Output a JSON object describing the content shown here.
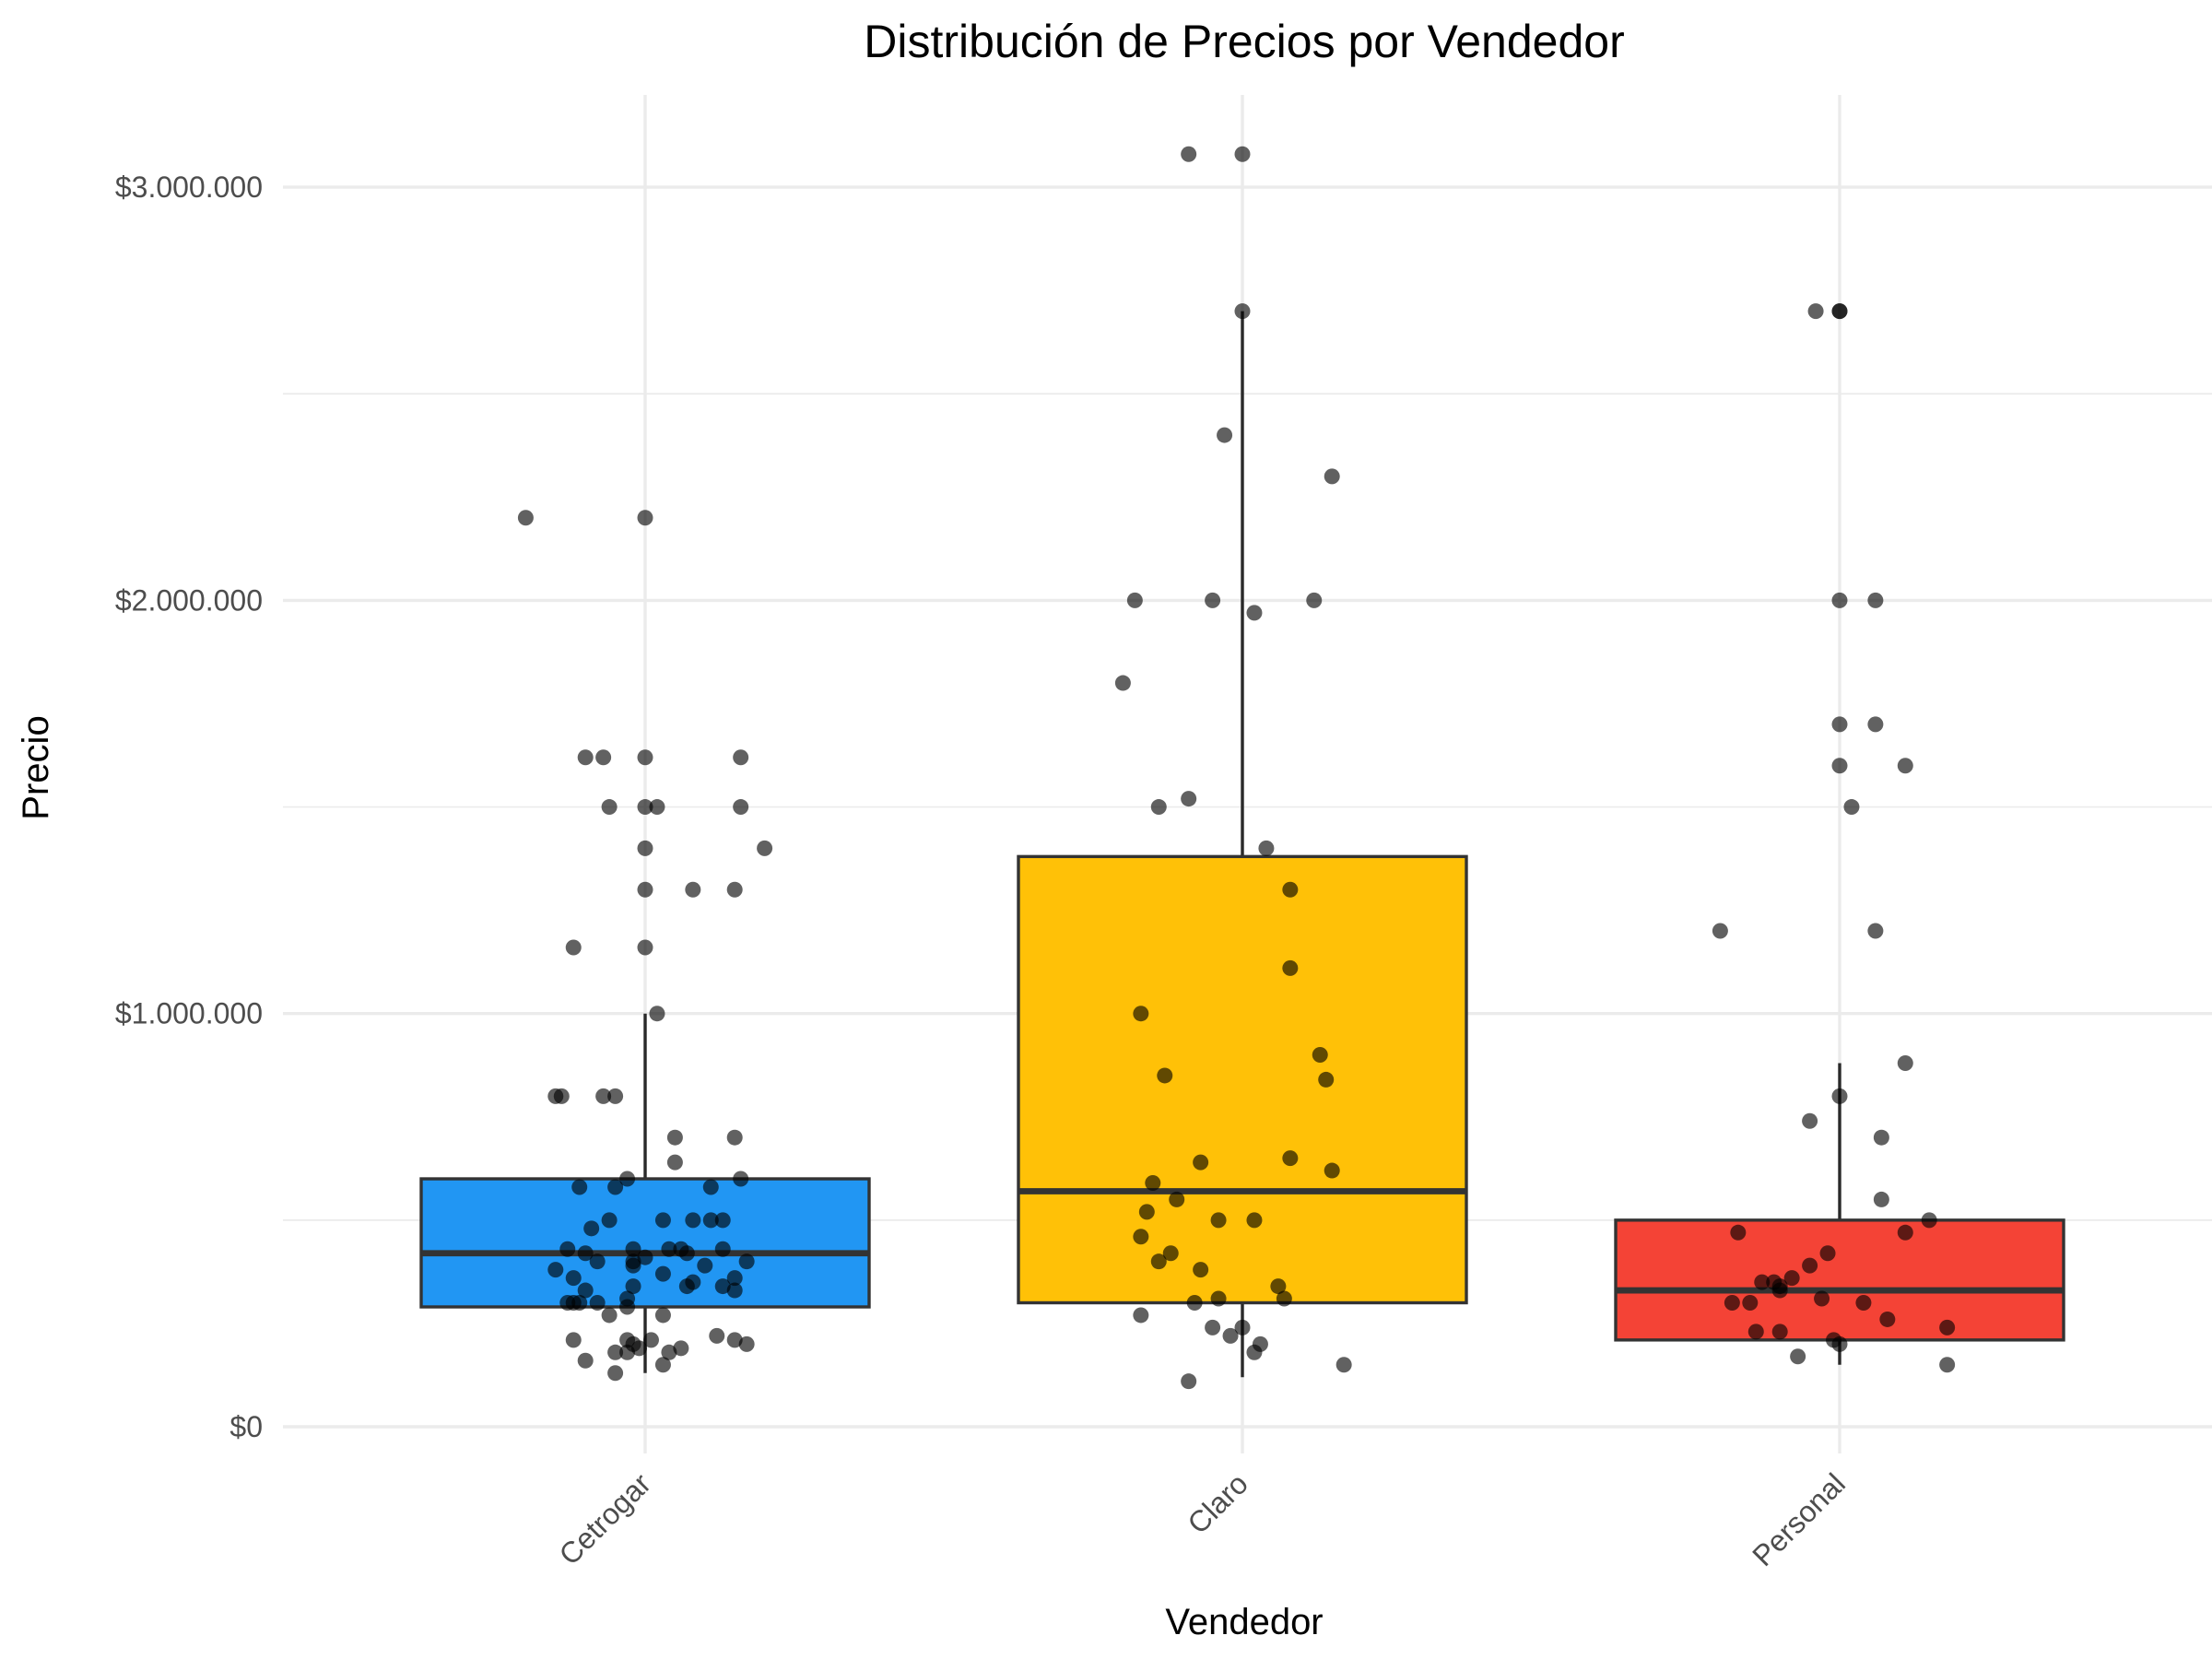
{
  "chart_data": {
    "type": "boxplot",
    "title": "Distribución de Precios por Vendedor",
    "xlabel": "Vendedor",
    "ylabel": "Precio",
    "ylim": [
      -150000,
      3250000
    ],
    "y_ticks": [
      0,
      1000000,
      2000000,
      3000000
    ],
    "y_tick_labels": [
      "$0",
      "$1.000.000",
      "$2.000.000",
      "$3.000.000"
    ],
    "x_tick_rotation": 45,
    "grid": true,
    "legend": "none",
    "categories": [
      "Cetrogar",
      "Claro",
      "Personal"
    ],
    "boxes": [
      {
        "category": "Cetrogar",
        "color": "#2196F3",
        "lower_whisker": 130000,
        "q1": 290000,
        "median": 420000,
        "q3": 600000,
        "upper_whisker": 1000000
      },
      {
        "category": "Claro",
        "color": "#FFC107",
        "lower_whisker": 120000,
        "q1": 300000,
        "median": 570000,
        "q3": 1380000,
        "upper_whisker": 2700000
      },
      {
        "category": "Personal",
        "color": "#F44336",
        "lower_whisker": 150000,
        "q1": 210000,
        "median": 330000,
        "q3": 500000,
        "upper_whisker": 880000
      }
    ],
    "points": [
      {
        "category": "Cetrogar",
        "x_offset": [
          -0.2,
          0,
          -0.07,
          -0.1,
          0,
          0.16,
          -0.06,
          0,
          0.02,
          0.16,
          0,
          0.2,
          0,
          0.08,
          0.15,
          -0.12,
          0,
          0.02,
          -0.14,
          -0.15,
          -0.07,
          0.15,
          0.05,
          -0.05,
          -0.03,
          0.11,
          0.16,
          0.05,
          -0.11,
          -0.05,
          0.03,
          0.08,
          0.13,
          -0.09,
          -0.06,
          0.11,
          0.04,
          -0.02,
          0.06,
          -0.13,
          -0.1,
          0.13,
          0.07,
          0,
          0.17,
          -0.02,
          -0.08,
          -0.02,
          0.1,
          -0.15,
          0.03,
          0.15,
          -0.12,
          0.08,
          0.07,
          0.13,
          -0.02,
          0.15,
          -0.1,
          -0.03,
          -0.11,
          -0.12,
          -0.08,
          -0.13,
          -0.03,
          0.03,
          -0.06,
          -0.12,
          0.01,
          0.12,
          0.17,
          -0.03,
          -0.02,
          0.06,
          -0.01,
          -0.03,
          0.04,
          -0.05,
          0.15,
          -0.1,
          0.03,
          -0.05
        ],
        "y": [
          2200000,
          2200000,
          1620000,
          1620000,
          1620000,
          1620000,
          1500000,
          1500000,
          1500000,
          1500000,
          1400000,
          1400000,
          1300000,
          1300000,
          1300000,
          1160000,
          1160000,
          1000000,
          800000,
          800000,
          800000,
          700000,
          700000,
          800000,
          600000,
          580000,
          600000,
          640000,
          580000,
          580000,
          500000,
          500000,
          500000,
          480000,
          500000,
          500000,
          430000,
          430000,
          430000,
          430000,
          420000,
          430000,
          420000,
          410000,
          400000,
          400000,
          400000,
          390000,
          390000,
          380000,
          370000,
          360000,
          360000,
          350000,
          340000,
          340000,
          340000,
          330000,
          330000,
          310000,
          300000,
          300000,
          300000,
          300000,
          290000,
          270000,
          270000,
          210000,
          210000,
          220000,
          200000,
          210000,
          200000,
          190000,
          190000,
          180000,
          180000,
          180000,
          210000,
          160000,
          150000,
          130000
        ]
      },
      {
        "category": "Claro",
        "x_offset": [
          -0.09,
          0,
          0,
          -0.03,
          0.15,
          -0.18,
          -0.05,
          0.02,
          0.12,
          -0.2,
          -0.14,
          -0.09,
          0.04,
          0.08,
          -0.17,
          0.08,
          -0.13,
          0.13,
          0.14,
          -0.07,
          0.08,
          -0.15,
          0.15,
          -0.04,
          0.02,
          -0.11,
          -0.16,
          -0.17,
          -0.12,
          -0.14,
          -0.07,
          0.06,
          -0.04,
          0.07,
          -0.08,
          -0.17,
          -0.05,
          0,
          -0.02,
          0.03,
          0.02,
          0.17,
          -0.09
        ],
        "y": [
          3080000,
          3080000,
          2700000,
          2400000,
          2300000,
          2000000,
          2000000,
          1970000,
          2000000,
          1800000,
          1500000,
          1520000,
          1400000,
          1300000,
          1000000,
          1110000,
          850000,
          900000,
          840000,
          640000,
          650000,
          590000,
          620000,
          500000,
          500000,
          550000,
          520000,
          460000,
          420000,
          400000,
          380000,
          340000,
          310000,
          310000,
          300000,
          270000,
          240000,
          240000,
          220000,
          200000,
          180000,
          150000,
          110000
        ]
      },
      {
        "category": "Personal",
        "x_offset": [
          -0.04,
          0,
          0,
          0.06,
          0,
          0.06,
          0,
          0.11,
          0,
          0.02,
          -0.2,
          0.06,
          0.11,
          0,
          0.07,
          -0.05,
          0.07,
          0.15,
          -0.17,
          0.11,
          -0.02,
          -0.05,
          -0.11,
          -0.13,
          -0.08,
          -0.1,
          -0.1,
          -0.03,
          -0.18,
          0.04,
          -0.15,
          0.08,
          0.18,
          -0.1,
          -0.14,
          -0.01,
          0,
          -0.07,
          0.18
        ],
        "y": [
          2700000,
          2700000,
          2700000,
          2000000,
          2000000,
          1700000,
          1700000,
          1600000,
          1600000,
          1500000,
          1200000,
          1200000,
          880000,
          800000,
          700000,
          740000,
          550000,
          500000,
          470000,
          470000,
          420000,
          390000,
          350000,
          350000,
          360000,
          340000,
          330000,
          310000,
          300000,
          300000,
          300000,
          260000,
          240000,
          230000,
          230000,
          210000,
          200000,
          170000,
          150000
        ]
      }
    ]
  }
}
